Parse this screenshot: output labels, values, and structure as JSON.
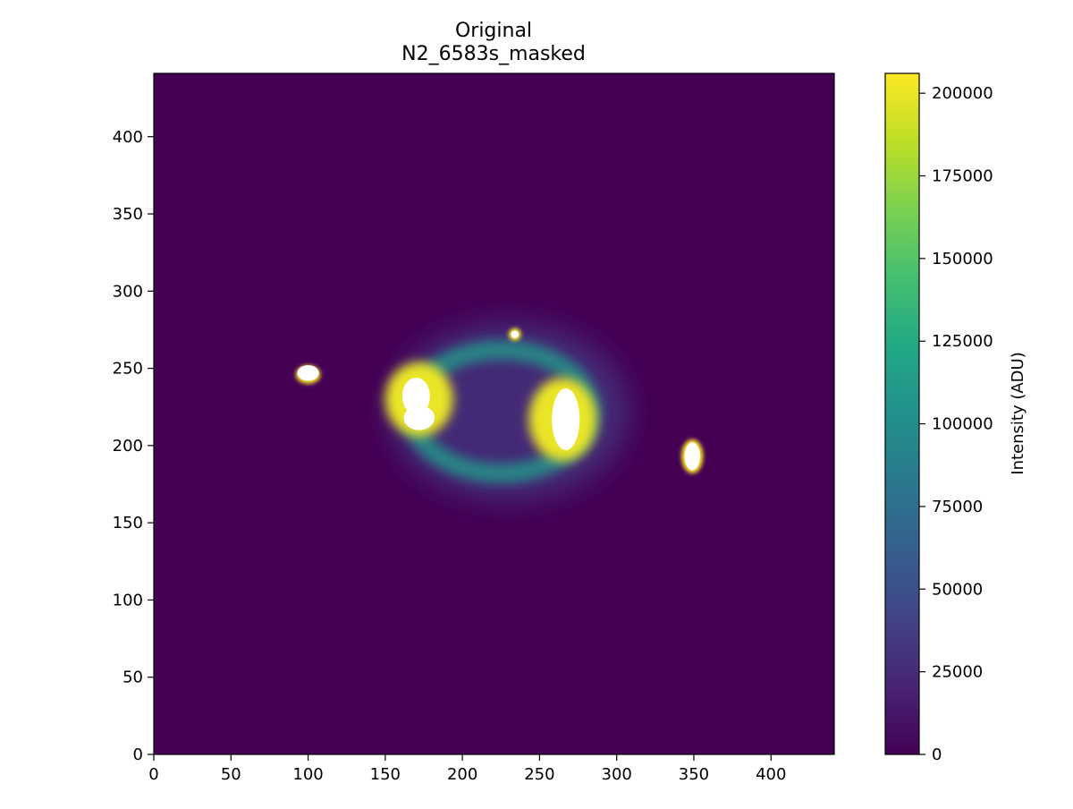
{
  "chart_data": {
    "type": "heatmap",
    "title_line1": "Original",
    "title_line2": "N2_6583s_masked",
    "xlim": [
      0,
      441
    ],
    "ylim": [
      0,
      441
    ],
    "x_ticks": [
      0,
      50,
      100,
      150,
      200,
      250,
      300,
      350,
      400
    ],
    "y_ticks": [
      0,
      50,
      100,
      150,
      200,
      250,
      300,
      350,
      400
    ],
    "colormap": "viridis",
    "colorbar": {
      "label": "Intensity (ADU)",
      "range": [
        0,
        206000
      ],
      "ticks": [
        0,
        25000,
        50000,
        75000,
        100000,
        125000,
        150000,
        175000,
        200000
      ]
    },
    "background_value": 0,
    "masked_color": "#ffffff",
    "features": [
      {
        "kind": "halo",
        "cx": 230,
        "cy": 222,
        "rx": 78,
        "ry": 58,
        "value": 30000
      },
      {
        "kind": "ring",
        "cx": 225,
        "cy": 222,
        "rx": 58,
        "ry": 40,
        "value": 110000
      },
      {
        "kind": "lobe",
        "cx": 172,
        "cy": 230,
        "rx": 22,
        "ry": 24,
        "value": 200000
      },
      {
        "kind": "lobe",
        "cx": 265,
        "cy": 217,
        "rx": 22,
        "ry": 27,
        "value": 200000
      },
      {
        "kind": "knot",
        "cx": 100,
        "cy": 246,
        "rx": 8,
        "ry": 6,
        "value": 206000
      },
      {
        "kind": "knot",
        "cx": 349,
        "cy": 193,
        "rx": 7,
        "ry": 11,
        "value": 206000
      },
      {
        "kind": "star",
        "cx": 234,
        "cy": 272,
        "rx": 4,
        "ry": 4,
        "value": 206000
      }
    ],
    "masked_regions": [
      {
        "cx": 170,
        "cy": 232,
        "rx": 9,
        "ry": 12
      },
      {
        "cx": 172,
        "cy": 218,
        "rx": 10,
        "ry": 8
      },
      {
        "cx": 267,
        "cy": 217,
        "rx": 9,
        "ry": 20
      },
      {
        "cx": 100,
        "cy": 247,
        "rx": 7,
        "ry": 5
      },
      {
        "cx": 349,
        "cy": 193,
        "rx": 5,
        "ry": 9
      },
      {
        "cx": 234,
        "cy": 272,
        "rx": 2.5,
        "ry": 2.5
      }
    ]
  }
}
